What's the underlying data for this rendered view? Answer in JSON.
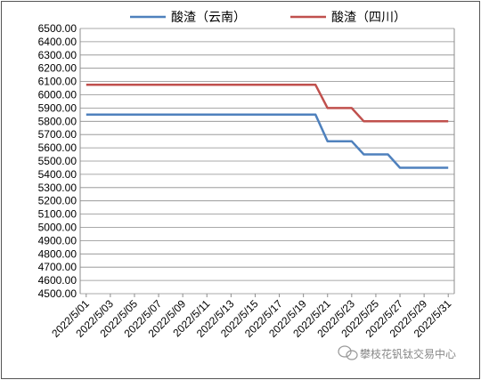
{
  "chart_data": {
    "type": "line",
    "title": "",
    "xlabel": "",
    "ylabel": "",
    "ylim": [
      4500,
      6500
    ],
    "y_tick_step": 100,
    "y_tick_decimals": 2,
    "grid": "horizontal",
    "legend_position": "top",
    "x": [
      "2022/5/01",
      "2022/5/02",
      "2022/5/03",
      "2022/5/04",
      "2022/5/05",
      "2022/5/06",
      "2022/5/07",
      "2022/5/08",
      "2022/5/09",
      "2022/5/10",
      "2022/5/11",
      "2022/5/12",
      "2022/5/13",
      "2022/5/14",
      "2022/5/15",
      "2022/5/16",
      "2022/5/17",
      "2022/5/18",
      "2022/5/19",
      "2022/5/20",
      "2022/5/21",
      "2022/5/22",
      "2022/5/23",
      "2022/5/24",
      "2022/5/25",
      "2022/5/26",
      "2022/5/27",
      "2022/5/28",
      "2022/5/29",
      "2022/5/30",
      "2022/5/31"
    ],
    "x_tick_labels": [
      "2022/5/01",
      "2022/5/03",
      "2022/5/05",
      "2022/5/07",
      "2022/5/09",
      "2022/5/11",
      "2022/5/13",
      "2022/5/15",
      "2022/5/17",
      "2022/5/19",
      "2022/5/21",
      "2022/5/23",
      "2022/5/25",
      "2022/5/27",
      "2022/5/29",
      "2022/5/31"
    ],
    "series": [
      {
        "name": "酸渣（云南）",
        "color": "#4f81bd",
        "values": [
          5850,
          5850,
          5850,
          5850,
          5850,
          5850,
          5850,
          5850,
          5850,
          5850,
          5850,
          5850,
          5850,
          5850,
          5850,
          5850,
          5850,
          5850,
          5850,
          5850,
          5650,
          5650,
          5650,
          5550,
          5550,
          5550,
          5450,
          5450,
          5450,
          5450,
          5450
        ]
      },
      {
        "name": "酸渣（四川）",
        "color": "#c0504d",
        "values": [
          6075,
          6075,
          6075,
          6075,
          6075,
          6075,
          6075,
          6075,
          6075,
          6075,
          6075,
          6075,
          6075,
          6075,
          6075,
          6075,
          6075,
          6075,
          6075,
          6075,
          5900,
          5900,
          5900,
          5800,
          5800,
          5800,
          5800,
          5800,
          5800,
          5800,
          5800
        ]
      }
    ]
  },
  "watermark": {
    "text": "攀枝花钒钛交易中心",
    "icon": "wechat-icon"
  }
}
